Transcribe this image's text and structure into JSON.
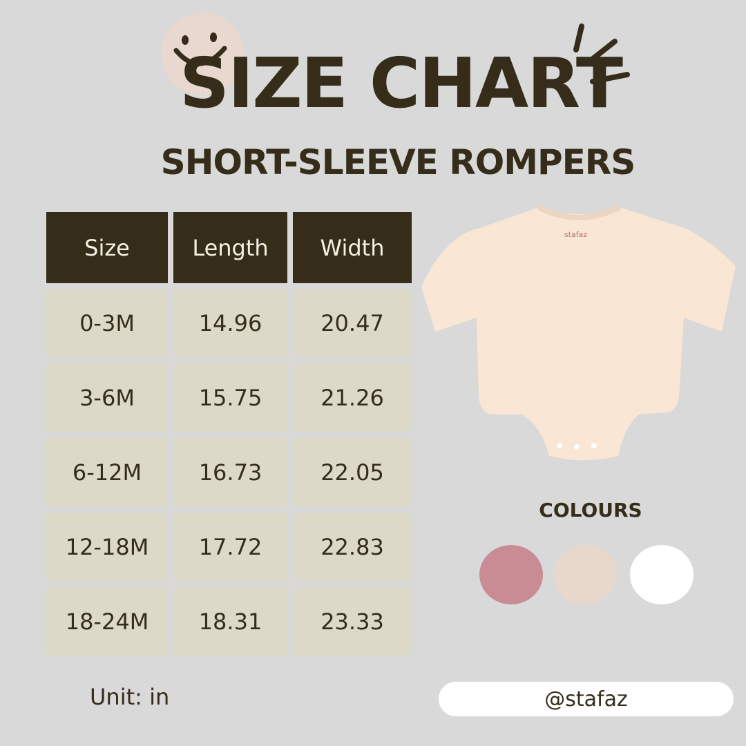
{
  "title": "SIZE CHART",
  "subtitle": "SHORT-SLEEVE ROMPERS",
  "table": {
    "headers": [
      "Size",
      "Length",
      "Width"
    ],
    "rows": [
      [
        "0-3M",
        "14.96",
        "20.47"
      ],
      [
        "3-6M",
        "15.75",
        "21.26"
      ],
      [
        "6-12M",
        "16.73",
        "22.05"
      ],
      [
        "12-18M",
        "17.72",
        "22.83"
      ],
      [
        "18-24M",
        "18.31",
        "23.33"
      ]
    ]
  },
  "unit_label": "Unit: in",
  "colours": {
    "label": "COLOURS",
    "swatches": [
      "#c98c94",
      "#e8d8cc",
      "#ffffff"
    ]
  },
  "handle": "@stafaz",
  "product_label": "stafaz",
  "colors": {
    "background": "#d9d9d9",
    "header": "#352c1a",
    "cell": "#dcd9c8",
    "text": "#352c1a",
    "smiley_bg": "#e8d8cf",
    "romper": "#f9e6d4"
  },
  "icons": [
    "smiley-icon",
    "sparkle-lines-icon"
  ]
}
